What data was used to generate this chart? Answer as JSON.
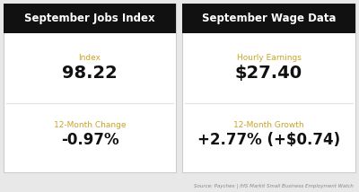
{
  "left_title": "September Jobs Index",
  "right_title": "September Wage Data",
  "left_label1": "Index",
  "left_value1": "98.22",
  "left_label2": "12-Month Change",
  "left_value2": "-0.97%",
  "right_label1": "Hourly Earnings",
  "right_value1": "$27.40",
  "right_label2": "12-Month Growth",
  "right_value2": "+2.77% (+$0.74)",
  "source_text": "Source: Paychex | IHS Markit Small Business Employment Watch",
  "header_bg": "#111111",
  "header_fg": "#ffffff",
  "card_bg": "#ffffff",
  "label_color": "#c8a427",
  "value_color": "#111111",
  "source_color": "#888888",
  "divider_color": "#e0e0e0",
  "outer_bg": "#e8e8e8",
  "card_edge": "#cccccc"
}
